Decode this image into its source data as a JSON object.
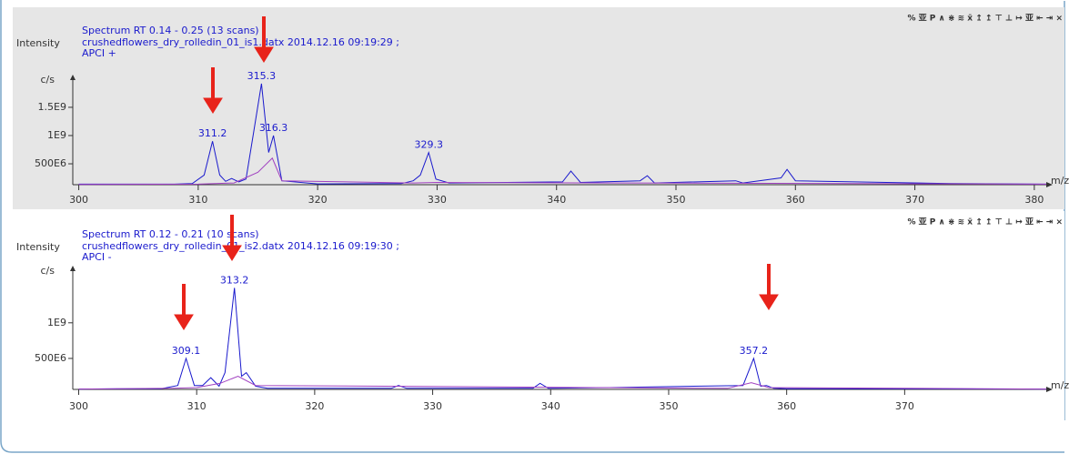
{
  "chart_data": [
    {
      "type": "line",
      "title": "Spectrum RT 0.14 - 0.25 (13 scans)",
      "subtitle": "crushedflowers_dry_rolledin_01_is1.datx 2014.12.16 09:19:29 ;",
      "mode": "APCI +",
      "y_label": "Intensity",
      "y_unit": "c/s",
      "x_label": "m/z",
      "toolbar": "% 亚 P ∧ ⋇ ≋ x̄ ↥ ↥ ⊤ ⊥ ↦ 亚 ⇤ ⇥ ×",
      "xlim": [
        299.5,
        381
      ],
      "xticks": [
        300,
        310,
        320,
        330,
        340,
        350,
        360,
        370,
        380
      ],
      "ylim": [
        130000000,
        1950000000
      ],
      "yticks": [
        {
          "value": 500000000,
          "label": "500E6"
        },
        {
          "value": 1000000000,
          "label": "1E9"
        },
        {
          "value": 1500000000,
          "label": "1.5E9"
        }
      ],
      "series": [
        {
          "color": "#1a1acd",
          "x": [
            300,
            308,
            309.5,
            310.5,
            311.2,
            311.8,
            312.3,
            312.8,
            313.4,
            314,
            314.6,
            315.3,
            315.9,
            316.3,
            317,
            320,
            327,
            328,
            328.6,
            329.3,
            329.9,
            331,
            340.5,
            341.2,
            342,
            347,
            347.6,
            348.2,
            355,
            355.6,
            358.8,
            359.3,
            360,
            373,
            381
          ],
          "values": [
            140000000,
            140000000,
            150000000,
            300000000,
            900000000,
            300000000,
            190000000,
            240000000,
            180000000,
            230000000,
            1000000000,
            1920000000,
            700000000,
            1000000000,
            200000000,
            145000000,
            150000000,
            200000000,
            300000000,
            700000000,
            230000000,
            160000000,
            180000000,
            370000000,
            170000000,
            200000000,
            290000000,
            160000000,
            200000000,
            160000000,
            250000000,
            400000000,
            200000000,
            150000000,
            140000000
          ]
        },
        {
          "color": "#a040c0",
          "x": [
            300,
            310,
            313,
            315,
            316.2,
            317,
            328,
            330,
            381
          ],
          "values": [
            135000000,
            140000000,
            160000000,
            350000000,
            600000000,
            200000000,
            160000000,
            170000000,
            140000000
          ]
        }
      ],
      "peaks": [
        {
          "x": 311.2,
          "y": 900000000
        },
        {
          "x": 315.3,
          "y": 1920000000
        },
        {
          "x": 316.3,
          "y": 1000000000
        },
        {
          "x": 329.3,
          "y": 700000000
        }
      ]
    },
    {
      "type": "line",
      "title": "Spectrum RT 0.12 - 0.21 (10 scans)",
      "subtitle": "crushedflowers_dry_rolledin_01_is2.datx 2014.12.16 09:19:30 ;",
      "mode": "APCI -",
      "y_label": "Intensity",
      "y_unit": "c/s",
      "x_label": "m/z",
      "toolbar": "% 亚 P ∧ ⋇ ≋ x̄ ↥ ↥ ⊤ ⊥ ↦ 亚 ⇤ ⇥ ×",
      "xlim": [
        299.5,
        382
      ],
      "xticks": [
        300,
        310,
        320,
        330,
        340,
        350,
        360,
        370
      ],
      "ylim": [
        65000000,
        1700000000
      ],
      "yticks": [
        {
          "value": 500000000,
          "label": "500E6"
        },
        {
          "value": 1000000000,
          "label": "1E9"
        }
      ],
      "series": [
        {
          "color": "#1a1acd",
          "x": [
            300,
            307,
            308.4,
            309.1,
            309.8,
            310.5,
            311.2,
            311.9,
            312.4,
            313.2,
            313.8,
            314.2,
            315,
            316,
            326.5,
            327.1,
            327.8,
            338.5,
            339.1,
            339.8,
            345,
            356.3,
            357.2,
            357.8,
            358.3,
            358.9,
            360,
            382
          ],
          "values": [
            70000000,
            75000000,
            120000000,
            500000000,
            120000000,
            120000000,
            230000000,
            110000000,
            300000000,
            1490000000,
            250000000,
            300000000,
            110000000,
            80000000,
            80000000,
            120000000,
            80000000,
            80000000,
            150000000,
            80000000,
            90000000,
            120000000,
            500000000,
            110000000,
            120000000,
            80000000,
            75000000,
            70000000
          ]
        },
        {
          "color": "#a040c0",
          "x": [
            300,
            308,
            310,
            312,
            313.5,
            315,
            355,
            357,
            358.5,
            382
          ],
          "values": [
            70000000,
            80000000,
            90000000,
            150000000,
            250000000,
            120000000,
            80000000,
            160000000,
            90000000,
            70000000
          ]
        }
      ],
      "peaks": [
        {
          "x": 309.1,
          "y": 500000000
        },
        {
          "x": 313.2,
          "y": 1490000000
        },
        {
          "x": 357.2,
          "y": 500000000
        }
      ]
    }
  ]
}
